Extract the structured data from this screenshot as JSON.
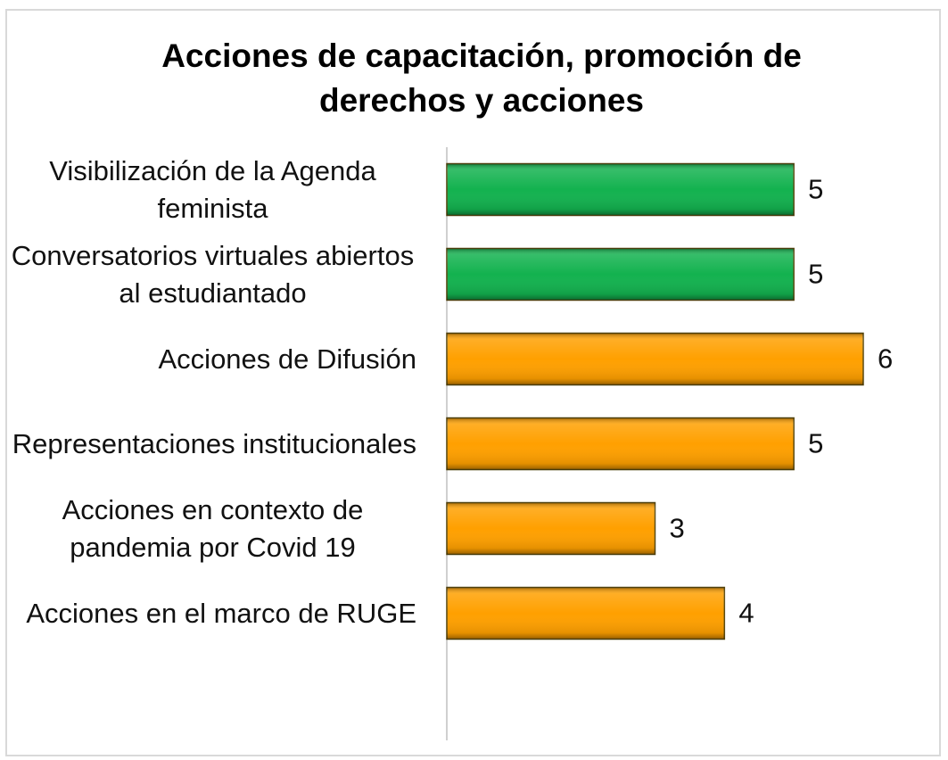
{
  "chart_data": {
    "type": "bar",
    "orientation": "horizontal",
    "title": "Acciones de capacitación, promoción de derechos y acciones",
    "categories": [
      "Visibilización de la Agenda feminista",
      "Conversatorios virtuales abiertos al estudiantado",
      "Acciones de Difusión",
      "Representaciones institucionales",
      "Acciones en contexto de pandemia por Covid 19",
      "Acciones en el marco de RUGE"
    ],
    "values": [
      5,
      5,
      6,
      5,
      3,
      4
    ],
    "colors": [
      "#13b24f",
      "#13b24f",
      "#ffa000",
      "#ffa000",
      "#ffa000",
      "#ffa000"
    ],
    "xlim": [
      0,
      6
    ]
  }
}
